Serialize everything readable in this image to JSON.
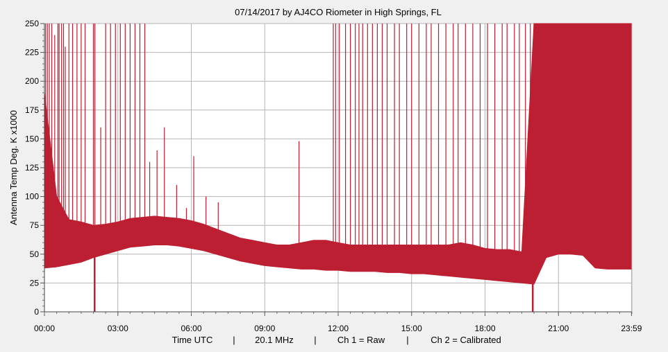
{
  "chart_data": {
    "type": "area",
    "title": "07/14/2017  by  AJ4CO Riometer  in  High Springs, FL",
    "ylabel": "Antenna Temp Deg. K x1000",
    "footer": [
      "Time UTC",
      "20.1 MHz",
      "Ch 1 = Raw",
      "Ch 2 = Calibrated"
    ],
    "xlim": [
      0,
      24
    ],
    "ylim": [
      0,
      250
    ],
    "grid": true,
    "yticks": [
      0,
      25,
      50,
      75,
      100,
      125,
      150,
      175,
      200,
      225,
      250
    ],
    "xtick_labels": [
      "00:00",
      "03:00",
      "06:00",
      "09:00",
      "12:00",
      "15:00",
      "18:00",
      "21:00",
      "23:59"
    ],
    "xtick_hours": [
      0,
      3,
      6,
      9,
      12,
      15,
      18,
      21,
      23.983
    ],
    "color": "#bd1f32",
    "series": [
      {
        "x_hours": [
          0,
          0.5,
          1,
          1.5,
          2,
          2.5,
          3,
          3.5,
          4,
          4.5,
          5,
          5.5,
          6,
          6.5,
          7,
          7.5,
          8,
          8.5,
          9,
          9.5,
          10,
          10.5,
          11,
          11.5,
          12,
          12.5,
          13,
          13.5,
          14,
          14.5,
          15,
          15.5,
          16,
          16.5,
          17,
          17.5,
          18,
          18.5,
          19,
          19.5,
          20,
          20.5,
          21,
          21.5,
          22,
          22.5,
          23,
          23.5,
          23.98
        ],
        "low": [
          38,
          39,
          41,
          43,
          47,
          50,
          53,
          56,
          57,
          58,
          58,
          57,
          55,
          53,
          50,
          47,
          44,
          42,
          40,
          39,
          38,
          37,
          37,
          36,
          36,
          35,
          35,
          35,
          34,
          34,
          33,
          33,
          32,
          31,
          30,
          29,
          28,
          27,
          26,
          25,
          24,
          47,
          50,
          50,
          49,
          38,
          37,
          37,
          37
        ],
        "high": [
          190,
          100,
          80,
          78,
          75,
          76,
          78,
          81,
          82,
          83,
          82,
          81,
          79,
          76,
          72,
          68,
          64,
          62,
          60,
          58,
          58,
          60,
          62,
          62,
          60,
          58,
          58,
          58,
          58,
          58,
          58,
          58,
          58,
          58,
          60,
          58,
          55,
          54,
          54,
          52,
          250,
          250,
          250,
          250,
          250,
          250,
          250,
          250,
          250
        ]
      }
    ],
    "spike_hours": [
      0.05,
      0.12,
      0.2,
      0.3,
      0.42,
      0.55,
      0.6,
      0.7,
      0.78,
      0.85,
      1.0,
      1.15,
      1.33,
      1.5,
      1.66,
      2.0,
      2.06,
      2.3,
      2.5,
      2.7,
      2.9,
      3.1,
      3.3,
      3.5,
      3.7,
      3.9,
      4.1,
      4.3,
      4.6,
      4.9,
      5.4,
      5.8,
      6.1,
      6.6,
      7.1,
      10.4,
      11.8,
      11.9,
      12.05,
      12.3,
      12.5,
      12.7,
      12.85,
      13.0,
      13.2,
      13.4,
      13.6,
      13.8,
      14.0,
      14.3,
      14.5,
      14.8,
      15.0,
      15.3,
      15.6,
      15.8,
      16.1,
      16.4,
      16.7,
      16.9,
      17.2,
      17.5,
      17.8,
      18.1,
      18.4,
      18.7,
      18.9,
      19.2,
      19.4,
      19.65,
      19.85,
      20.0,
      20.15,
      20.35
    ],
    "spike_tops": [
      250,
      250,
      250,
      250,
      240,
      250,
      250,
      250,
      250,
      230,
      250,
      250,
      250,
      250,
      250,
      250,
      250,
      160,
      250,
      250,
      250,
      250,
      250,
      250,
      250,
      250,
      250,
      130,
      140,
      160,
      110,
      90,
      135,
      100,
      95,
      148,
      250,
      250,
      250,
      250,
      250,
      250,
      250,
      250,
      250,
      250,
      250,
      250,
      250,
      250,
      250,
      250,
      250,
      250,
      250,
      250,
      250,
      250,
      250,
      250,
      250,
      250,
      250,
      250,
      250,
      250,
      250,
      250,
      250,
      250,
      250,
      250,
      250,
      250
    ],
    "dips": [
      {
        "hour": 2.05,
        "value": 0
      },
      {
        "hour": 19.95,
        "value": 0
      }
    ]
  }
}
